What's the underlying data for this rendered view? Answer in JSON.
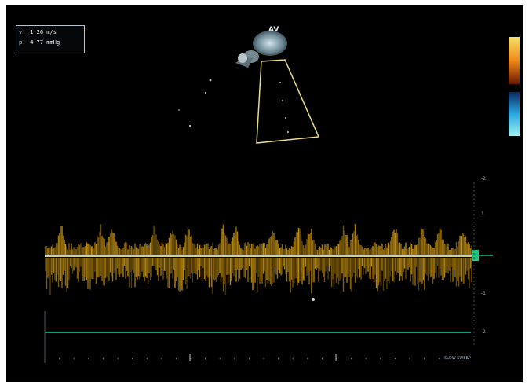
{
  "readout": {
    "row1_label": "v",
    "row1_value": "1.26 m/s",
    "row2_label": "p",
    "row2_value": "4.77 mmHg"
  },
  "probe": {
    "label": "AV"
  },
  "velocity_scale": {
    "labels": [
      "-2",
      "1",
      "-1",
      "-2"
    ]
  },
  "sweep": {
    "speed_label": "SLOW SWEEP"
  },
  "colors": {
    "background": "#000000",
    "frame": "#ffffff",
    "sample_volume": "#e9dd8c",
    "doppler_flow": "#d19a14",
    "baseline": "#d6ce8a",
    "ecg_trace": "#1ec9a5",
    "colorbar_positive": "#e06a10",
    "colorbar_negative": "#2aa8d8"
  }
}
